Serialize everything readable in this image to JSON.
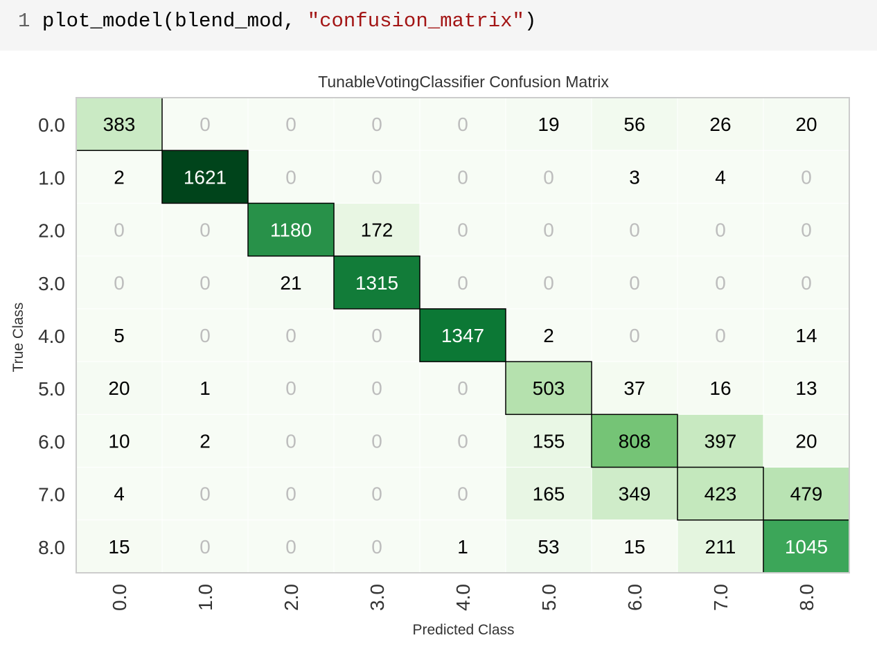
{
  "code_cell": {
    "line_number": "1",
    "code_prefix": "plot_model(blend_mod, ",
    "code_string": "\"confusion_matrix\"",
    "code_suffix": ")"
  },
  "colors": {
    "cmap": "Greens",
    "zero_text": "#bdbdbd",
    "text_dark": "#000000",
    "text_light": "#ffffff",
    "diag_border": "#000000",
    "frame": "#cccccc"
  },
  "chart_data": {
    "type": "heatmap",
    "title": "TunableVotingClassifier Confusion Matrix",
    "xlabel": "Predicted Class",
    "ylabel": "True Class",
    "x_categories": [
      "0.0",
      "1.0",
      "2.0",
      "3.0",
      "4.0",
      "5.0",
      "6.0",
      "7.0",
      "8.0"
    ],
    "y_categories": [
      "0.0",
      "1.0",
      "2.0",
      "3.0",
      "4.0",
      "5.0",
      "6.0",
      "7.0",
      "8.0"
    ],
    "values": [
      [
        383,
        0,
        0,
        0,
        0,
        19,
        56,
        26,
        20
      ],
      [
        2,
        1621,
        0,
        0,
        0,
        0,
        3,
        4,
        0
      ],
      [
        0,
        0,
        1180,
        172,
        0,
        0,
        0,
        0,
        0
      ],
      [
        0,
        0,
        21,
        1315,
        0,
        0,
        0,
        0,
        0
      ],
      [
        5,
        0,
        0,
        0,
        1347,
        2,
        0,
        0,
        14
      ],
      [
        20,
        1,
        0,
        0,
        0,
        503,
        37,
        16,
        13
      ],
      [
        10,
        2,
        0,
        0,
        0,
        155,
        808,
        397,
        20
      ],
      [
        4,
        0,
        0,
        0,
        0,
        165,
        349,
        423,
        479
      ],
      [
        15,
        0,
        0,
        0,
        1,
        53,
        15,
        211,
        1045
      ]
    ],
    "x_tick_rotation": 90,
    "grid": false
  }
}
